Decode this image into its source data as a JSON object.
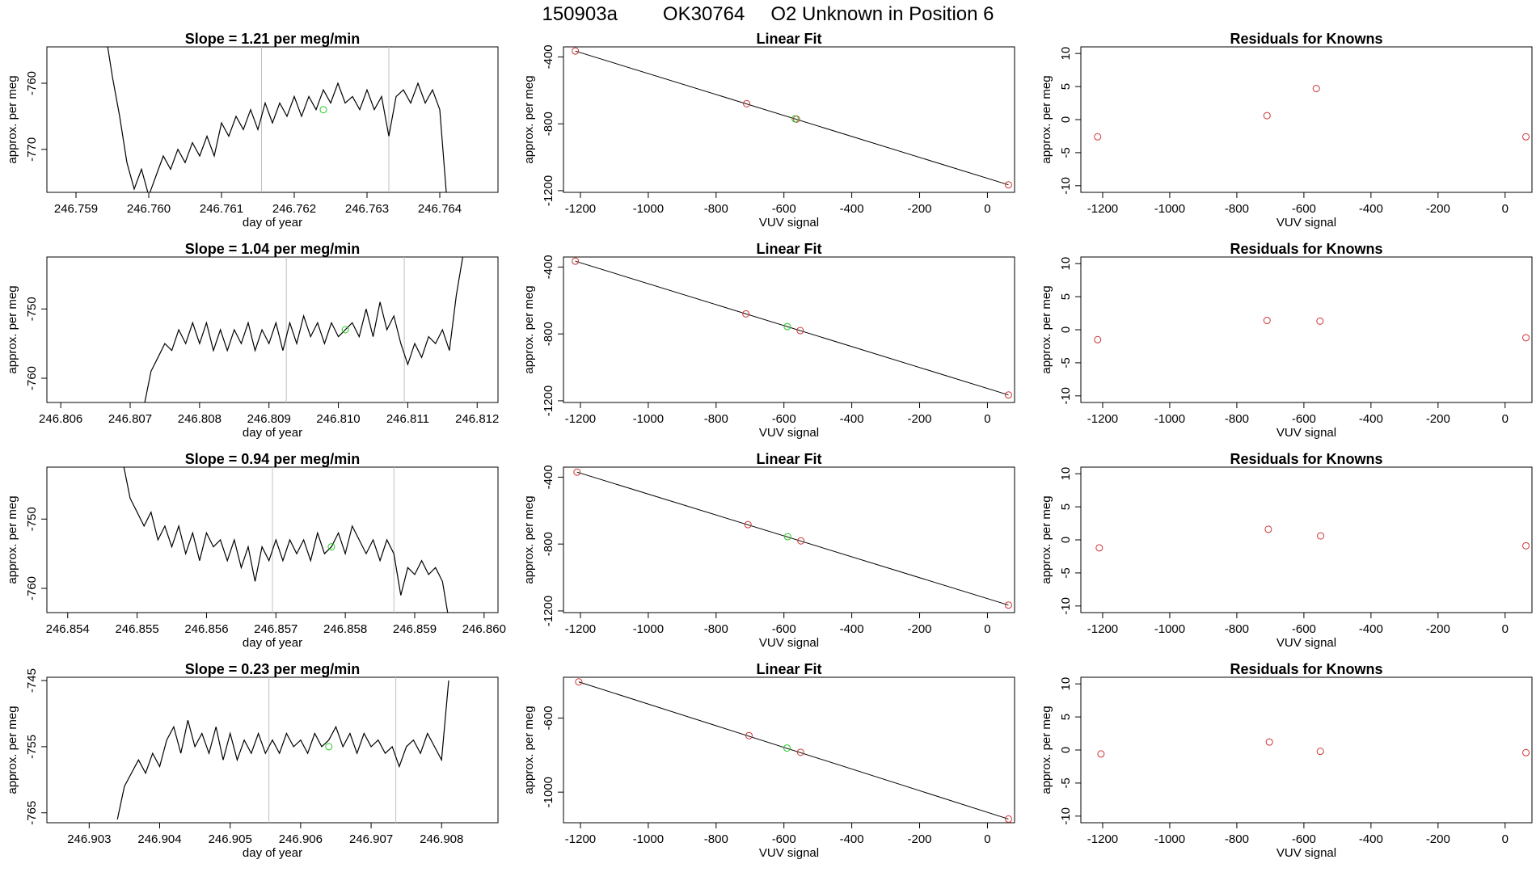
{
  "header": {
    "run": "150903a",
    "tank_id": "OK30764",
    "label": "O2 Unknown in Position  6"
  },
  "chart_data": [
    {
      "row": 1,
      "type": "line",
      "title": "Slope =  1.21  per meg/min",
      "xlabel": "day of year",
      "ylabel": "approx. per meg",
      "xlim": [
        246.7586,
        246.7648
      ],
      "ylim": [
        -776.5,
        -754.5
      ],
      "xticks": [
        246.759,
        246.76,
        246.761,
        246.762,
        246.763,
        246.764
      ],
      "yticks": [
        -760,
        -770
      ],
      "vlines": [
        246.76155,
        246.7633
      ],
      "marker": {
        "x": 246.7624,
        "y": -764.0
      },
      "trace": [
        [
          246.7594,
          -752
        ],
        [
          246.7595,
          -759
        ],
        [
          246.7596,
          -765
        ],
        [
          246.7597,
          -772
        ],
        [
          246.7598,
          -776
        ],
        [
          246.7599,
          -773
        ],
        [
          246.76,
          -777
        ],
        [
          246.7601,
          -774
        ],
        [
          246.7602,
          -771
        ],
        [
          246.7603,
          -773
        ],
        [
          246.7604,
          -770
        ],
        [
          246.7605,
          -772
        ],
        [
          246.7606,
          -769
        ],
        [
          246.7607,
          -771
        ],
        [
          246.7608,
          -768
        ],
        [
          246.7609,
          -771
        ],
        [
          246.761,
          -766
        ],
        [
          246.7611,
          -768
        ],
        [
          246.7612,
          -765
        ],
        [
          246.7613,
          -767
        ],
        [
          246.7614,
          -764
        ],
        [
          246.7615,
          -767
        ],
        [
          246.7616,
          -763
        ],
        [
          246.7617,
          -766
        ],
        [
          246.7618,
          -763
        ],
        [
          246.7619,
          -765
        ],
        [
          246.762,
          -762
        ],
        [
          246.7621,
          -765
        ],
        [
          246.7622,
          -762
        ],
        [
          246.7623,
          -764
        ],
        [
          246.7624,
          -761
        ],
        [
          246.7625,
          -763
        ],
        [
          246.7626,
          -760
        ],
        [
          246.7627,
          -763
        ],
        [
          246.7628,
          -762
        ],
        [
          246.7629,
          -764
        ],
        [
          246.763,
          -761
        ],
        [
          246.7631,
          -764
        ],
        [
          246.7632,
          -762
        ],
        [
          246.7633,
          -768
        ],
        [
          246.7634,
          -762
        ],
        [
          246.7635,
          -761
        ],
        [
          246.7636,
          -763
        ],
        [
          246.7637,
          -760
        ],
        [
          246.7638,
          -763
        ],
        [
          246.7639,
          -761
        ],
        [
          246.764,
          -764
        ],
        [
          246.7641,
          -778
        ]
      ]
    },
    {
      "row": 2,
      "type": "line",
      "title": "Slope =  1.04  per meg/min",
      "xlabel": "day of year",
      "ylabel": "approx. per meg",
      "xlim": [
        246.8058,
        246.8123
      ],
      "ylim": [
        -763.5,
        -742.5
      ],
      "xticks": [
        246.806,
        246.807,
        246.808,
        246.809,
        246.81,
        246.811,
        246.812
      ],
      "yticks": [
        -750,
        -760
      ],
      "vlines": [
        246.80925,
        246.81095
      ],
      "marker": {
        "x": 246.8101,
        "y": -753.0
      },
      "trace": [
        [
          246.8072,
          -764
        ],
        [
          246.8073,
          -759
        ],
        [
          246.8074,
          -757
        ],
        [
          246.8075,
          -755
        ],
        [
          246.8076,
          -756
        ],
        [
          246.8077,
          -753
        ],
        [
          246.8078,
          -755
        ],
        [
          246.8079,
          -752
        ],
        [
          246.808,
          -755
        ],
        [
          246.8081,
          -752
        ],
        [
          246.8082,
          -756
        ],
        [
          246.8083,
          -753
        ],
        [
          246.8084,
          -756
        ],
        [
          246.8085,
          -753
        ],
        [
          246.8086,
          -755
        ],
        [
          246.8087,
          -752
        ],
        [
          246.8088,
          -756
        ],
        [
          246.8089,
          -753
        ],
        [
          246.809,
          -755
        ],
        [
          246.8091,
          -752
        ],
        [
          246.8092,
          -756
        ],
        [
          246.8093,
          -752
        ],
        [
          246.8094,
          -755
        ],
        [
          246.8095,
          -751
        ],
        [
          246.8096,
          -754
        ],
        [
          246.8097,
          -752
        ],
        [
          246.8098,
          -755
        ],
        [
          246.8099,
          -752
        ],
        [
          246.81,
          -754
        ],
        [
          246.8101,
          -753
        ],
        [
          246.8102,
          -752
        ],
        [
          246.8103,
          -754
        ],
        [
          246.8104,
          -750
        ],
        [
          246.8105,
          -754
        ],
        [
          246.8106,
          -749
        ],
        [
          246.8107,
          -753
        ],
        [
          246.8108,
          -751
        ],
        [
          246.8109,
          -755
        ],
        [
          246.811,
          -758
        ],
        [
          246.8111,
          -755
        ],
        [
          246.8112,
          -757
        ],
        [
          246.8113,
          -754
        ],
        [
          246.8114,
          -755
        ],
        [
          246.8115,
          -753
        ],
        [
          246.8116,
          -756
        ],
        [
          246.8117,
          -748
        ],
        [
          246.8118,
          -742
        ]
      ]
    },
    {
      "row": 3,
      "type": "line",
      "title": "Slope =  0.94  per meg/min",
      "xlabel": "day of year",
      "ylabel": "approx. per meg",
      "xlim": [
        246.8537,
        246.8602
      ],
      "ylim": [
        -763.5,
        -742.5
      ],
      "xticks": [
        246.854,
        246.855,
        246.856,
        246.857,
        246.858,
        246.859,
        246.86
      ],
      "yticks": [
        -750,
        -760
      ],
      "vlines": [
        246.85695,
        246.8587
      ],
      "marker": {
        "x": 246.8578,
        "y": -754.0
      },
      "trace": [
        [
          246.8548,
          -742
        ],
        [
          246.8549,
          -747
        ],
        [
          246.855,
          -749
        ],
        [
          246.8551,
          -751
        ],
        [
          246.8552,
          -749
        ],
        [
          246.8553,
          -753
        ],
        [
          246.8554,
          -751
        ],
        [
          246.8555,
          -754
        ],
        [
          246.8556,
          -751
        ],
        [
          246.8557,
          -755
        ],
        [
          246.8558,
          -752
        ],
        [
          246.8559,
          -756
        ],
        [
          246.856,
          -752
        ],
        [
          246.8561,
          -754
        ],
        [
          246.8562,
          -753
        ],
        [
          246.8563,
          -756
        ],
        [
          246.8564,
          -753
        ],
        [
          246.8565,
          -757
        ],
        [
          246.8566,
          -754
        ],
        [
          246.8567,
          -759
        ],
        [
          246.8568,
          -754
        ],
        [
          246.8569,
          -756
        ],
        [
          246.857,
          -753
        ],
        [
          246.8571,
          -756
        ],
        [
          246.8572,
          -753
        ],
        [
          246.8573,
          -755
        ],
        [
          246.8574,
          -753
        ],
        [
          246.8575,
          -756
        ],
        [
          246.8576,
          -752
        ],
        [
          246.8577,
          -755
        ],
        [
          246.8578,
          -754
        ],
        [
          246.8579,
          -752
        ],
        [
          246.858,
          -755
        ],
        [
          246.8581,
          -751
        ],
        [
          246.8582,
          -753
        ],
        [
          246.8583,
          -755
        ],
        [
          246.8584,
          -753
        ],
        [
          246.8585,
          -756
        ],
        [
          246.8586,
          -753
        ],
        [
          246.8587,
          -755
        ],
        [
          246.8588,
          -761
        ],
        [
          246.8589,
          -757
        ],
        [
          246.859,
          -758
        ],
        [
          246.8591,
          -756
        ],
        [
          246.8592,
          -758
        ],
        [
          246.8593,
          -757
        ],
        [
          246.8594,
          -759
        ],
        [
          246.8595,
          -765
        ]
      ]
    },
    {
      "row": 4,
      "type": "line",
      "title": "Slope =  0.23  per meg/min",
      "xlabel": "day of year",
      "ylabel": "approx. per meg",
      "xlim": [
        246.9024,
        246.9088
      ],
      "ylim": [
        -766.5,
        -744.5
      ],
      "xticks": [
        246.903,
        246.904,
        246.905,
        246.906,
        246.907,
        246.908
      ],
      "yticks": [
        -745,
        -755,
        -765
      ],
      "vlines": [
        246.90555,
        246.90735
      ],
      "marker": {
        "x": 246.9064,
        "y": -755.0
      },
      "trace": [
        [
          246.9034,
          -766
        ],
        [
          246.9035,
          -761
        ],
        [
          246.9036,
          -759
        ],
        [
          246.9037,
          -757
        ],
        [
          246.9038,
          -759
        ],
        [
          246.9039,
          -756
        ],
        [
          246.904,
          -758
        ],
        [
          246.9041,
          -754
        ],
        [
          246.9042,
          -752
        ],
        [
          246.9043,
          -756
        ],
        [
          246.9044,
          -751
        ],
        [
          246.9045,
          -755
        ],
        [
          246.9046,
          -753
        ],
        [
          246.9047,
          -756
        ],
        [
          246.9048,
          -752
        ],
        [
          246.9049,
          -757
        ],
        [
          246.905,
          -753
        ],
        [
          246.9051,
          -757
        ],
        [
          246.9052,
          -754
        ],
        [
          246.9053,
          -756
        ],
        [
          246.9054,
          -753
        ],
        [
          246.9055,
          -756
        ],
        [
          246.9056,
          -754
        ],
        [
          246.9057,
          -756
        ],
        [
          246.9058,
          -753
        ],
        [
          246.9059,
          -755
        ],
        [
          246.906,
          -754
        ],
        [
          246.9061,
          -756
        ],
        [
          246.9062,
          -753
        ],
        [
          246.9063,
          -755
        ],
        [
          246.9064,
          -754
        ],
        [
          246.9065,
          -752
        ],
        [
          246.9066,
          -755
        ],
        [
          246.9067,
          -753
        ],
        [
          246.9068,
          -756
        ],
        [
          246.9069,
          -753
        ],
        [
          246.907,
          -755
        ],
        [
          246.9071,
          -754
        ],
        [
          246.9072,
          -756
        ],
        [
          246.9073,
          -755
        ],
        [
          246.9074,
          -758
        ],
        [
          246.9075,
          -755
        ],
        [
          246.9076,
          -754
        ],
        [
          246.9077,
          -756
        ],
        [
          246.9078,
          -753
        ],
        [
          246.9079,
          -755
        ],
        [
          246.908,
          -757
        ],
        [
          246.9081,
          -745
        ]
      ]
    },
    {
      "row": 1,
      "type": "scatter",
      "title": "Linear Fit",
      "xlabel": "VUV signal",
      "ylabel": "approx. per meg",
      "xlim": [
        -1250,
        80
      ],
      "ylim": [
        -1210,
        -340
      ],
      "xticks": [
        -1200,
        -1000,
        -800,
        -600,
        -400,
        -200,
        0
      ],
      "yticks": [
        -400,
        -800,
        -1200
      ],
      "fit_line": [
        [
          -1215,
          -365
        ],
        [
          62,
          -1165
        ]
      ],
      "points": [
        [
          -1215,
          -365
        ],
        [
          -710,
          -680
        ],
        [
          -563,
          -772
        ],
        [
          62,
          -1165
        ]
      ],
      "unknown": {
        "x": -567,
        "y": -770
      }
    },
    {
      "row": 2,
      "type": "scatter",
      "title": "Linear Fit",
      "xlabel": "VUV signal",
      "ylabel": "approx. per meg",
      "xlim": [
        -1250,
        80
      ],
      "ylim": [
        -1210,
        -340
      ],
      "xticks": [
        -1200,
        -1000,
        -800,
        -600,
        -400,
        -200,
        0
      ],
      "yticks": [
        -400,
        -800,
        -1200
      ],
      "fit_line": [
        [
          -1215,
          -365
        ],
        [
          62,
          -1165
        ]
      ],
      "points": [
        [
          -1215,
          -365
        ],
        [
          -712,
          -680
        ],
        [
          -552,
          -780
        ],
        [
          62,
          -1165
        ]
      ],
      "unknown": {
        "x": -590,
        "y": -756
      }
    },
    {
      "row": 3,
      "type": "scatter",
      "title": "Linear Fit",
      "xlabel": "VUV signal",
      "ylabel": "approx. per meg",
      "xlim": [
        -1250,
        80
      ],
      "ylim": [
        -1210,
        -340
      ],
      "xticks": [
        -1200,
        -1000,
        -800,
        -600,
        -400,
        -200,
        0
      ],
      "yticks": [
        -400,
        -800,
        -1200
      ],
      "fit_line": [
        [
          -1210,
          -370
        ],
        [
          62,
          -1165
        ]
      ],
      "points": [
        [
          -1210,
          -370
        ],
        [
          -706,
          -684
        ],
        [
          -550,
          -781
        ],
        [
          62,
          -1165
        ]
      ],
      "unknown": {
        "x": -589,
        "y": -756
      }
    },
    {
      "row": 4,
      "type": "scatter",
      "title": "Linear Fit",
      "xlabel": "VUV signal",
      "ylabel": "approx. per meg",
      "xlim": [
        -1250,
        80
      ],
      "ylim": [
        -1165,
        -380
      ],
      "xticks": [
        -1200,
        -1000,
        -800,
        -600,
        -400,
        -200,
        0
      ],
      "yticks": [
        -600,
        -1000
      ],
      "fit_line": [
        [
          -1205,
          -405
        ],
        [
          62,
          -1145
        ]
      ],
      "points": [
        [
          -1205,
          -405
        ],
        [
          -703,
          -695
        ],
        [
          -551,
          -785
        ],
        [
          62,
          -1145
        ]
      ],
      "unknown": {
        "x": -591,
        "y": -762
      }
    },
    {
      "row": 1,
      "type": "scatter",
      "title": "Residuals for Knowns",
      "xlabel": "VUV signal",
      "ylabel": "approx. per meg",
      "xlim": [
        -1265,
        80
      ],
      "ylim": [
        -11,
        11
      ],
      "xticks": [
        -1200,
        -1000,
        -800,
        -600,
        -400,
        -200,
        0
      ],
      "yticks": [
        10,
        5,
        0,
        -5,
        -10
      ],
      "points": [
        [
          -1215,
          -2.6
        ],
        [
          -710,
          0.6
        ],
        [
          -563,
          4.7
        ],
        [
          62,
          -2.6
        ]
      ]
    },
    {
      "row": 2,
      "type": "scatter",
      "title": "Residuals for Knowns",
      "xlabel": "VUV signal",
      "ylabel": "approx. per meg",
      "xlim": [
        -1265,
        80
      ],
      "ylim": [
        -11,
        11
      ],
      "xticks": [
        -1200,
        -1000,
        -800,
        -600,
        -400,
        -200,
        0
      ],
      "yticks": [
        10,
        5,
        0,
        -5,
        -10
      ],
      "points": [
        [
          -1215,
          -1.5
        ],
        [
          -710,
          1.4
        ],
        [
          -552,
          1.3
        ],
        [
          62,
          -1.2
        ]
      ]
    },
    {
      "row": 3,
      "type": "scatter",
      "title": "Residuals for Knowns",
      "xlabel": "VUV signal",
      "ylabel": "approx. per meg",
      "xlim": [
        -1265,
        80
      ],
      "ylim": [
        -11,
        11
      ],
      "xticks": [
        -1200,
        -1000,
        -800,
        -600,
        -400,
        -200,
        0
      ],
      "yticks": [
        10,
        5,
        0,
        -5,
        -10
      ],
      "points": [
        [
          -1210,
          -1.2
        ],
        [
          -706,
          1.6
        ],
        [
          -550,
          0.6
        ],
        [
          62,
          -0.9
        ]
      ]
    },
    {
      "row": 4,
      "type": "scatter",
      "title": "Residuals for Knowns",
      "xlabel": "VUV signal",
      "ylabel": "approx. per meg",
      "xlim": [
        -1265,
        80
      ],
      "ylim": [
        -11,
        11
      ],
      "xticks": [
        -1200,
        -1000,
        -800,
        -600,
        -400,
        -200,
        0
      ],
      "yticks": [
        10,
        5,
        0,
        -5,
        -10
      ],
      "points": [
        [
          -1205,
          -0.6
        ],
        [
          -703,
          1.2
        ],
        [
          -551,
          -0.2
        ],
        [
          62,
          -0.4
        ]
      ]
    }
  ],
  "colors": {
    "trace": "#000000",
    "known_points": "#cd3333",
    "unknown_point": "#22cc22",
    "marker": "#22cc22",
    "vlines": "#c0c0c0",
    "axis": "#000000"
  }
}
